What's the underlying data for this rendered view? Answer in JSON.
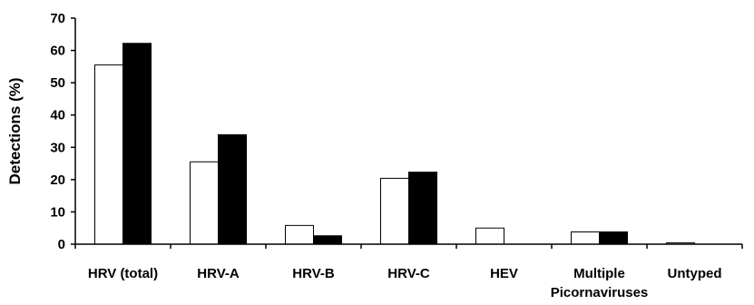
{
  "chart_data": {
    "type": "bar",
    "title": "",
    "xlabel": "",
    "ylabel": "Detections (%)",
    "ylim": [
      0,
      70
    ],
    "yticks": [
      0,
      10,
      20,
      30,
      40,
      50,
      60,
      70
    ],
    "grid": false,
    "legend": "none",
    "categories": [
      "HRV (total)",
      "HRV-A",
      "HRV-B",
      "HRV-C",
      "HEV",
      [
        "Multiple",
        "Picornaviruses"
      ],
      "Untyped"
    ],
    "series": [
      {
        "fill": "#ffffff",
        "stroke": "#000000",
        "values": [
          55.5,
          25.5,
          5.8,
          20.4,
          5.0,
          3.8,
          0.4
        ]
      },
      {
        "fill": "#000000",
        "stroke": "#000000",
        "values": [
          62.2,
          33.9,
          2.6,
          22.3,
          0,
          3.8,
          0
        ]
      }
    ]
  }
}
